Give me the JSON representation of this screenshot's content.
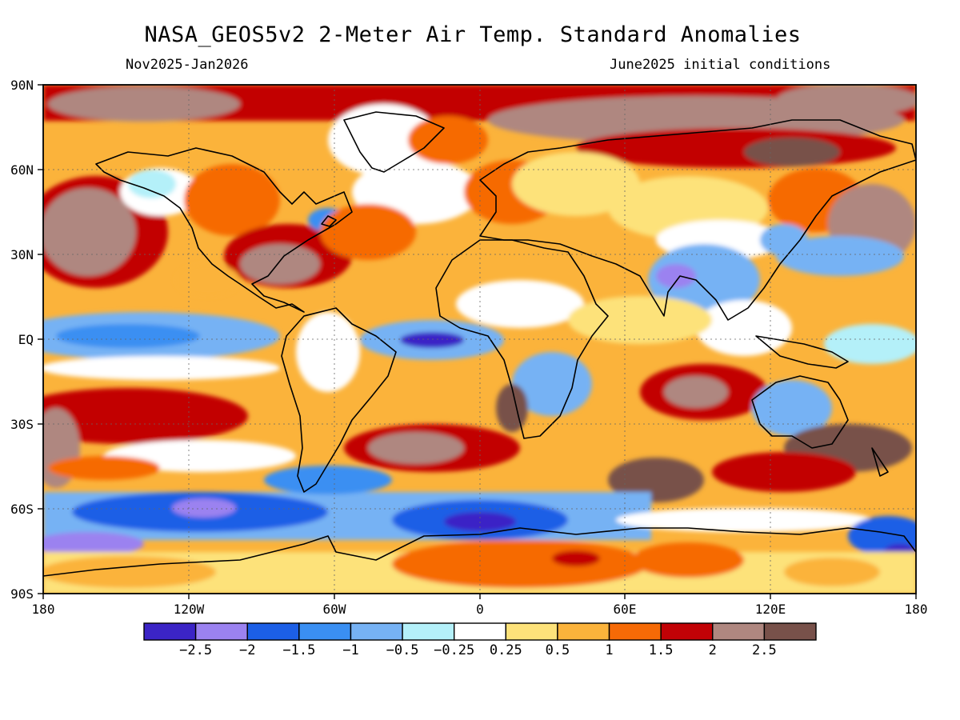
{
  "title": "NASA_GEOS5v2 2-Meter Air Temp. Standard Anomalies",
  "subtitle_left": "Nov2025-Jan2026",
  "subtitle_right": "June2025 initial conditions",
  "map": {
    "projection": "equirectangular",
    "lon_range": [
      -180,
      180
    ],
    "lat_range": [
      -90,
      90
    ],
    "lat_labels": [
      "90N",
      "60N",
      "30N",
      "EQ",
      "30S",
      "60S",
      "90S"
    ],
    "lon_labels": [
      "180",
      "120W",
      "60W",
      "0",
      "60E",
      "120E",
      "180"
    ],
    "gridlines": "dotted"
  },
  "colorbar": {
    "colors": [
      "#3b24c6",
      "#9b82f0",
      "#1c5fe6",
      "#3a8ff2",
      "#76b2f4",
      "#b4f0f9",
      "#ffffff",
      "#fde27a",
      "#fbb33b",
      "#f66a06",
      "#c20206",
      "#af8780",
      "#78514a"
    ],
    "labels": [
      "-2.5",
      "-2",
      "-1.5",
      "-1",
      "-0.5",
      "-0.25",
      "0.25",
      "0.5",
      "1",
      "1.5",
      "2",
      "2.5"
    ]
  }
}
